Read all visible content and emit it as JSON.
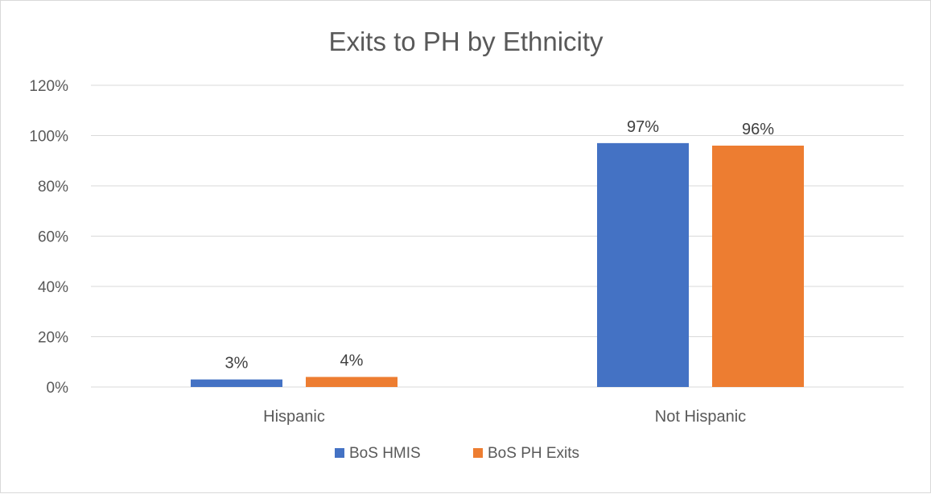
{
  "chart_data": {
    "type": "bar",
    "title": "Exits to PH by Ethnicity",
    "categories": [
      "Hispanic",
      "Not Hispanic"
    ],
    "series": [
      {
        "name": "BoS HMIS",
        "values": [
          3,
          97
        ],
        "labels": [
          "3%",
          "97%"
        ],
        "color": "#4472C4"
      },
      {
        "name": "BoS PH Exits",
        "values": [
          4,
          96
        ],
        "labels": [
          "4%",
          "96%"
        ],
        "color": "#ED7D31"
      }
    ],
    "yticks": [
      "0%",
      "20%",
      "40%",
      "60%",
      "80%",
      "100%",
      "120%"
    ],
    "ylim": [
      0,
      120
    ],
    "grid": true,
    "legend": "bottom",
    "gridColor": "#d9d9d9"
  }
}
